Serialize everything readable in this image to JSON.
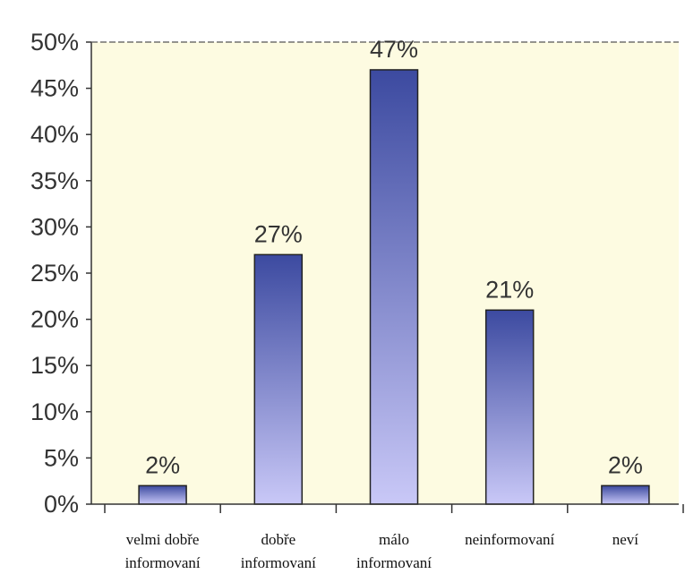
{
  "colors": {
    "plot_background": "#fdfbe1",
    "bar_top": "#3c4aa0",
    "bar_bottom": "#c9c8f7",
    "bar_outline": "#222222",
    "axis": "#333333"
  },
  "chart_data": {
    "type": "bar",
    "categories": [
      [
        "velmi dobře",
        "informovaní"
      ],
      [
        "dobře",
        "informovaní"
      ],
      [
        "málo",
        "informovaní"
      ],
      [
        "neinformovaní"
      ],
      [
        "neví"
      ]
    ],
    "values": [
      2,
      27,
      47,
      21,
      2
    ],
    "data_labels": [
      "2%",
      "27%",
      "47%",
      "21%",
      "2%"
    ],
    "y_ticks": [
      "0%",
      "5%",
      "10%",
      "15%",
      "20%",
      "25%",
      "30%",
      "35%",
      "40%",
      "45%",
      "50%"
    ],
    "ylim": [
      0,
      50
    ],
    "grid": false,
    "legend": "none"
  }
}
